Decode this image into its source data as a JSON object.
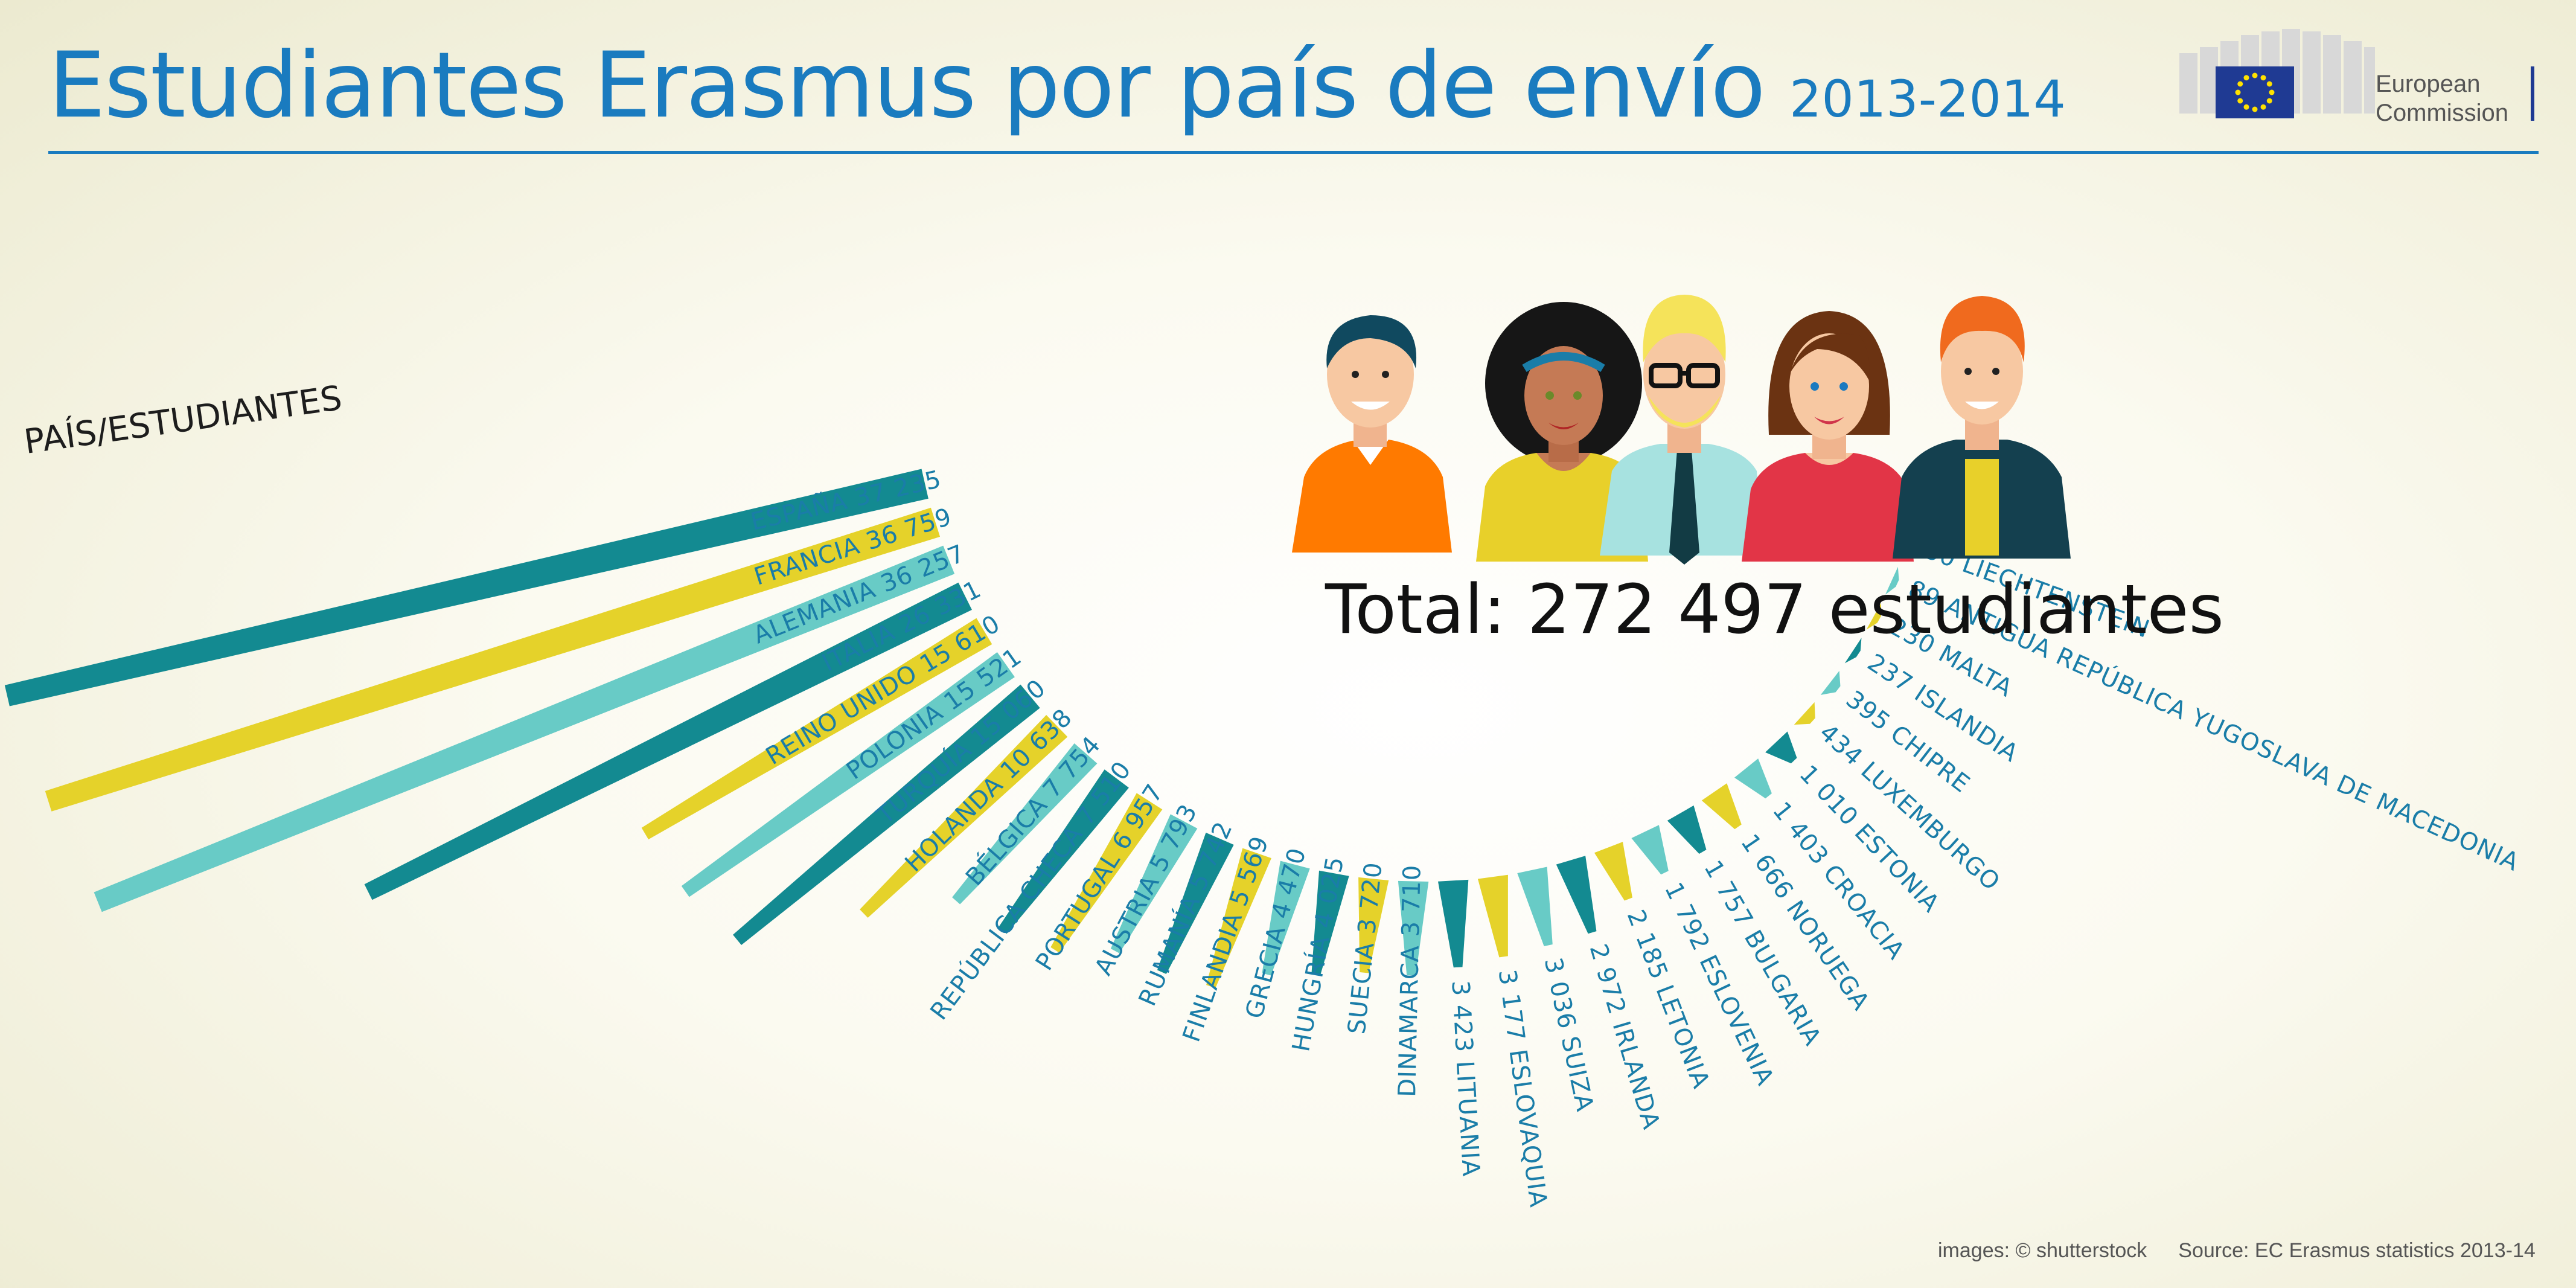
{
  "title": "Estudiantes Erasmus por país de envío",
  "subtitle": "2013-2014",
  "logo_text": [
    "European",
    "Commission"
  ],
  "chart_data": {
    "type": "bar",
    "header": "PAÍS/ESTUDIANTES",
    "categories": [
      "ESPAÑA",
      "FRANCIA",
      "ALEMANIA",
      "ITALIA",
      "REINO UNIDO",
      "POLONIA",
      "TURQUÍA",
      "HOLANDA",
      "BÉLGICA",
      "REPÚBLICA CHECA",
      "PORTUGAL",
      "AUSTRIA",
      "RUMANÍA",
      "FINLANDIA",
      "GRECIA",
      "HUNGRÍA",
      "SUECIA",
      "DINAMARCA",
      "LITUANIA",
      "ESLOVAQUIA",
      "SUIZA",
      "IRLANDA",
      "LETONIA",
      "ESLOVENIA",
      "BULGARIA",
      "NORUEGA",
      "CROACIA",
      "ESTONIA",
      "LUXEMBURGO",
      "CHIPRE",
      "ISLANDIA",
      "MALTA",
      "ANTIGUA REPÚBLICA YUGOSLAVA DE MACEDONIA",
      "LIECHTENSTEIN"
    ],
    "values": [
      37235,
      36759,
      36257,
      26331,
      15610,
      15521,
      15060,
      10638,
      7754,
      7510,
      6957,
      5793,
      5742,
      5569,
      4470,
      4025,
      3720,
      3710,
      3423,
      3177,
      3036,
      2972,
      2185,
      1792,
      1757,
      1666,
      1403,
      1010,
      434,
      395,
      237,
      230,
      89,
      30
    ],
    "value_labels": [
      "37 235",
      "36 759",
      "36 257",
      "26 331",
      "15 610",
      "15 521",
      "15 060",
      "10 638",
      "7 754",
      "7 510",
      "6 957",
      "5 793",
      "5 742",
      "5 569",
      "4 470",
      "4 025",
      "3 720",
      "3 710",
      "3 423",
      "3 177",
      "3 036",
      "2 972",
      "2 185",
      "1 792",
      "1 757",
      "1 666",
      "1 403",
      "1 010",
      "434",
      "395",
      "237",
      "230",
      "89",
      "30"
    ],
    "colors": [
      "#138a91",
      "#e5d22a",
      "#68cbc6"
    ]
  },
  "total_text": "Total: 272 497 estudiantes",
  "footer": {
    "images": "images: © shutterstock",
    "source": "Source: EC Erasmus statistics 2013-14"
  }
}
